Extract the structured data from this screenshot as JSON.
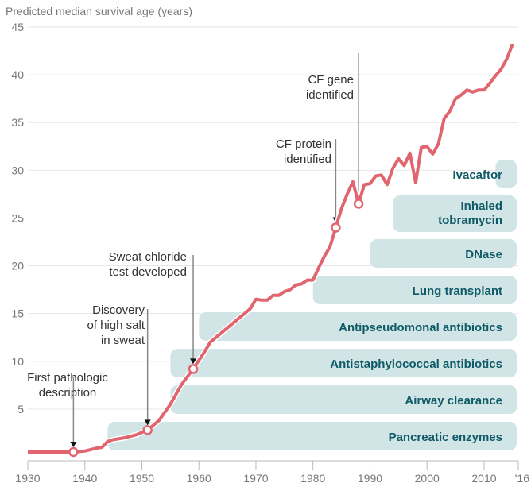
{
  "chart_data": {
    "type": "line",
    "title": "",
    "ylabel": "Predicted median survival age (years)",
    "xlabel": "",
    "xlim": [
      1930,
      2016
    ],
    "ylim": [
      0,
      45
    ],
    "yticks": [
      5,
      10,
      15,
      20,
      25,
      30,
      35,
      40,
      45
    ],
    "xticks": [
      {
        "value": 1930,
        "label": "1930"
      },
      {
        "value": 1940,
        "label": "1940"
      },
      {
        "value": 1950,
        "label": "1950"
      },
      {
        "value": 1960,
        "label": "1960"
      },
      {
        "value": 1970,
        "label": "1970"
      },
      {
        "value": 1980,
        "label": "1980"
      },
      {
        "value": 1990,
        "label": "1990"
      },
      {
        "value": 2000,
        "label": "2000"
      },
      {
        "value": 2010,
        "label": "2010"
      },
      {
        "value": 2016,
        "label": "'16"
      }
    ],
    "grid": true,
    "series": [
      {
        "name": "Predicted median survival age",
        "color": "#e0656f",
        "points": [
          [
            1930,
            0.5
          ],
          [
            1935,
            0.5
          ],
          [
            1938,
            0.5
          ],
          [
            1940,
            0.6
          ],
          [
            1942,
            0.9
          ],
          [
            1943,
            1.0
          ],
          [
            1944,
            1.6
          ],
          [
            1945,
            1.8
          ],
          [
            1947,
            2.0
          ],
          [
            1949,
            2.3
          ],
          [
            1951,
            2.8
          ],
          [
            1953,
            3.8
          ],
          [
            1955,
            5.5
          ],
          [
            1957,
            7.6
          ],
          [
            1959,
            9.2
          ],
          [
            1961,
            11.0
          ],
          [
            1962,
            12.0
          ],
          [
            1964,
            13.0
          ],
          [
            1966,
            14.0
          ],
          [
            1968,
            15.0
          ],
          [
            1969,
            15.5
          ],
          [
            1970,
            16.5
          ],
          [
            1971,
            16.4
          ],
          [
            1972,
            16.4
          ],
          [
            1973,
            16.9
          ],
          [
            1974,
            16.9
          ],
          [
            1975,
            17.3
          ],
          [
            1976,
            17.5
          ],
          [
            1977,
            18.0
          ],
          [
            1978,
            18.1
          ],
          [
            1979,
            18.5
          ],
          [
            1980,
            18.5
          ],
          [
            1981,
            19.8
          ],
          [
            1982,
            21.0
          ],
          [
            1983,
            22.0
          ],
          [
            1984,
            24.0
          ],
          [
            1985,
            26.0
          ],
          [
            1986,
            27.5
          ],
          [
            1987,
            28.8
          ],
          [
            1988,
            26.5
          ],
          [
            1989,
            28.5
          ],
          [
            1990,
            28.6
          ],
          [
            1991,
            29.4
          ],
          [
            1992,
            29.5
          ],
          [
            1993,
            28.5
          ],
          [
            1994,
            30.2
          ],
          [
            1995,
            31.2
          ],
          [
            1996,
            30.5
          ],
          [
            1997,
            31.8
          ],
          [
            1998,
            28.7
          ],
          [
            1999,
            32.4
          ],
          [
            2000,
            32.5
          ],
          [
            2001,
            31.7
          ],
          [
            2002,
            32.8
          ],
          [
            2003,
            35.4
          ],
          [
            2004,
            36.2
          ],
          [
            2005,
            37.5
          ],
          [
            2006,
            37.9
          ],
          [
            2007,
            38.4
          ],
          [
            2008,
            38.2
          ],
          [
            2009,
            38.4
          ],
          [
            2010,
            38.4
          ],
          [
            2011,
            39.1
          ],
          [
            2012,
            39.9
          ],
          [
            2013,
            40.6
          ],
          [
            2014,
            41.7
          ],
          [
            2015,
            43.2
          ]
        ]
      }
    ],
    "milestones": [
      {
        "year": 1938,
        "value": 0.5,
        "label_lines": [
          "First pathologic",
          "description"
        ]
      },
      {
        "year": 1951,
        "value": 2.8,
        "label_lines": [
          "Discovery",
          "of high salt",
          "in sweat"
        ]
      },
      {
        "year": 1959,
        "value": 9.2,
        "label_lines": [
          "Sweat chloride",
          "test developed"
        ]
      },
      {
        "year": 1984,
        "value": 24.0,
        "label_lines": [
          "CF protein",
          "identified"
        ]
      },
      {
        "year": 1988,
        "value": 26.5,
        "label_lines": [
          "CF gene",
          "identified"
        ]
      }
    ],
    "treatments": [
      {
        "label_lines": [
          "Pancreatic enzymes"
        ],
        "start_year": 1944,
        "end_year": 2016
      },
      {
        "label_lines": [
          "Airway clearance"
        ],
        "start_year": 1955,
        "end_year": 2016
      },
      {
        "label_lines": [
          "Antistaphylococcal antibiotics"
        ],
        "start_year": 1955,
        "end_year": 2016
      },
      {
        "label_lines": [
          "Antipseudomonal antibiotics"
        ],
        "start_year": 1960,
        "end_year": 2016
      },
      {
        "label_lines": [
          "Lung transplant"
        ],
        "start_year": 1980,
        "end_year": 2016
      },
      {
        "label_lines": [
          "DNase"
        ],
        "start_year": 1990,
        "end_year": 2016
      },
      {
        "label_lines": [
          "Inhaled",
          "tobramycin"
        ],
        "start_year": 1994,
        "end_year": 2016
      },
      {
        "label_lines": [
          "Ivacaftor"
        ],
        "start_year": 2012,
        "end_year": 2016
      }
    ],
    "colors": {
      "line": "#e0656f",
      "band": "#d2e5e6",
      "band_text": "#0e5a66"
    }
  }
}
